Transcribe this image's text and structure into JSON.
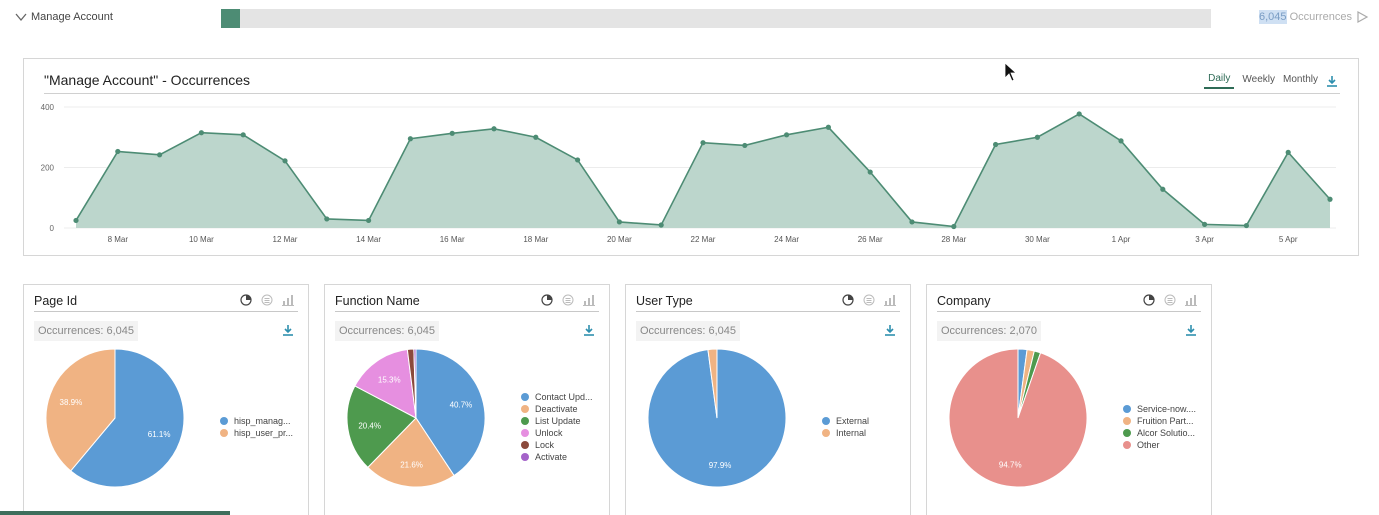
{
  "header": {
    "title": "Manage Account",
    "progress_fraction": 0.019,
    "count": "6,045",
    "count_suffix": " Occurrences"
  },
  "main": {
    "title": "\"Manage Account\" - Occurrences",
    "tabs": [
      {
        "label": "Daily",
        "active": true
      },
      {
        "label": "Weekly",
        "active": false
      },
      {
        "label": "Monthly",
        "active": false
      }
    ]
  },
  "panels": [
    {
      "title": "Page Id",
      "occurrences": "Occurrences: 6,045"
    },
    {
      "title": "Function Name",
      "occurrences": "Occurrences: 6,045"
    },
    {
      "title": "User Type",
      "occurrences": "Occurrences: 6,045"
    },
    {
      "title": "Company",
      "occurrences": "Occurrences: 2,070"
    }
  ],
  "chart_data": [
    {
      "type": "area",
      "title": "\"Manage Account\" - Occurrences",
      "xlabel": "",
      "ylabel": "",
      "ylim": [
        0,
        400
      ],
      "yticks": [
        0,
        200,
        400
      ],
      "grid": true,
      "x_start": "7 Mar",
      "xtick_labels": [
        "8 Mar",
        "10 Mar",
        "12 Mar",
        "14 Mar",
        "16 Mar",
        "18 Mar",
        "20 Mar",
        "22 Mar",
        "24 Mar",
        "26 Mar",
        "28 Mar",
        "30 Mar",
        "1 Apr",
        "3 Apr",
        "5 Apr"
      ],
      "values": [
        25,
        253,
        242,
        315,
        308,
        222,
        30,
        25,
        295,
        313,
        328,
        300,
        225,
        20,
        10,
        282,
        273,
        308,
        333,
        185,
        20,
        5,
        276,
        300,
        377,
        288,
        128,
        12,
        8,
        250,
        95
      ],
      "color": "#4d8c74",
      "fill": "#bcd6cc"
    },
    {
      "type": "pie",
      "title": "Page Id",
      "slices": [
        {
          "label": "hisp_manag...",
          "value": 61.1,
          "color": "#5b9bd5",
          "show_label": true
        },
        {
          "label": "hisp_user_pr...",
          "value": 38.9,
          "color": "#f0b383",
          "show_label": true
        }
      ]
    },
    {
      "type": "pie",
      "title": "Function Name",
      "slices": [
        {
          "label": "Contact Upd...",
          "value": 40.7,
          "color": "#5b9bd5",
          "show_label": true
        },
        {
          "label": "Deactivate",
          "value": 21.6,
          "color": "#f0b383",
          "show_label": true
        },
        {
          "label": "List Update",
          "value": 20.4,
          "color": "#4e9a4e",
          "show_label": true
        },
        {
          "label": "Unlock",
          "value": 15.3,
          "color": "#e68fe0",
          "show_label": true
        },
        {
          "label": "Lock",
          "value": 1.5,
          "color": "#8b4a3c",
          "show_label": false
        },
        {
          "label": "Activate",
          "value": 0.5,
          "color": "#a463c9",
          "show_label": false
        }
      ]
    },
    {
      "type": "pie",
      "title": "User Type",
      "slices": [
        {
          "label": "External",
          "value": 97.9,
          "color": "#5b9bd5",
          "show_label": true
        },
        {
          "label": "Internal",
          "value": 2.1,
          "color": "#f0b383",
          "show_label": false
        }
      ]
    },
    {
      "type": "pie",
      "title": "Company",
      "slices": [
        {
          "label": "Service-now....",
          "value": 2.1,
          "color": "#5b9bd5",
          "show_label": false
        },
        {
          "label": "Fruition Part...",
          "value": 1.7,
          "color": "#f0b383",
          "show_label": false
        },
        {
          "label": "Alcor Solutio...",
          "value": 1.5,
          "color": "#4e9a4e",
          "show_label": false
        },
        {
          "label": "Other",
          "value": 94.7,
          "color": "#e8908c",
          "show_label": true
        }
      ]
    }
  ]
}
